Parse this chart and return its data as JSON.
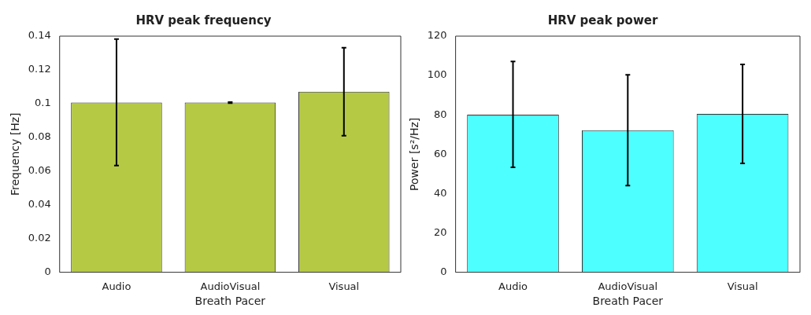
{
  "chart_data": [
    {
      "type": "bar",
      "title": "HRV peak frequency",
      "xlabel": "Breath Pacer",
      "ylabel": "Frequency [Hz]",
      "categories": [
        "Audio",
        "AudioVisual",
        "Visual"
      ],
      "values": [
        0.1007,
        0.1006,
        0.1071
      ],
      "errors": [
        [
          0.0633,
          0.1382
        ],
        [
          0.1003,
          0.1009
        ],
        [
          0.081,
          0.1331
        ]
      ],
      "color": "#b5c944",
      "ylim": [
        0,
        0.14
      ],
      "yticks": [
        0,
        0.02,
        0.04,
        0.06,
        0.08,
        0.1,
        0.12,
        0.14
      ],
      "grid": false,
      "legend": false
    },
    {
      "type": "bar",
      "title": "HRV peak power",
      "xlabel": "Breath Pacer",
      "ylabel": "Power [s²/Hz]",
      "categories": [
        "Audio",
        "AudioVisual",
        "Visual"
      ],
      "values": [
        80.1,
        72.2,
        80.5
      ],
      "errors": [
        [
          53.3,
          107.1
        ],
        [
          44.1,
          100.3
        ],
        [
          55.3,
          105.6
        ]
      ],
      "color": "#4dffff",
      "ylim": [
        0,
        120
      ],
      "yticks": [
        0,
        20,
        40,
        60,
        80,
        100,
        120
      ],
      "grid": false,
      "legend": false
    }
  ]
}
